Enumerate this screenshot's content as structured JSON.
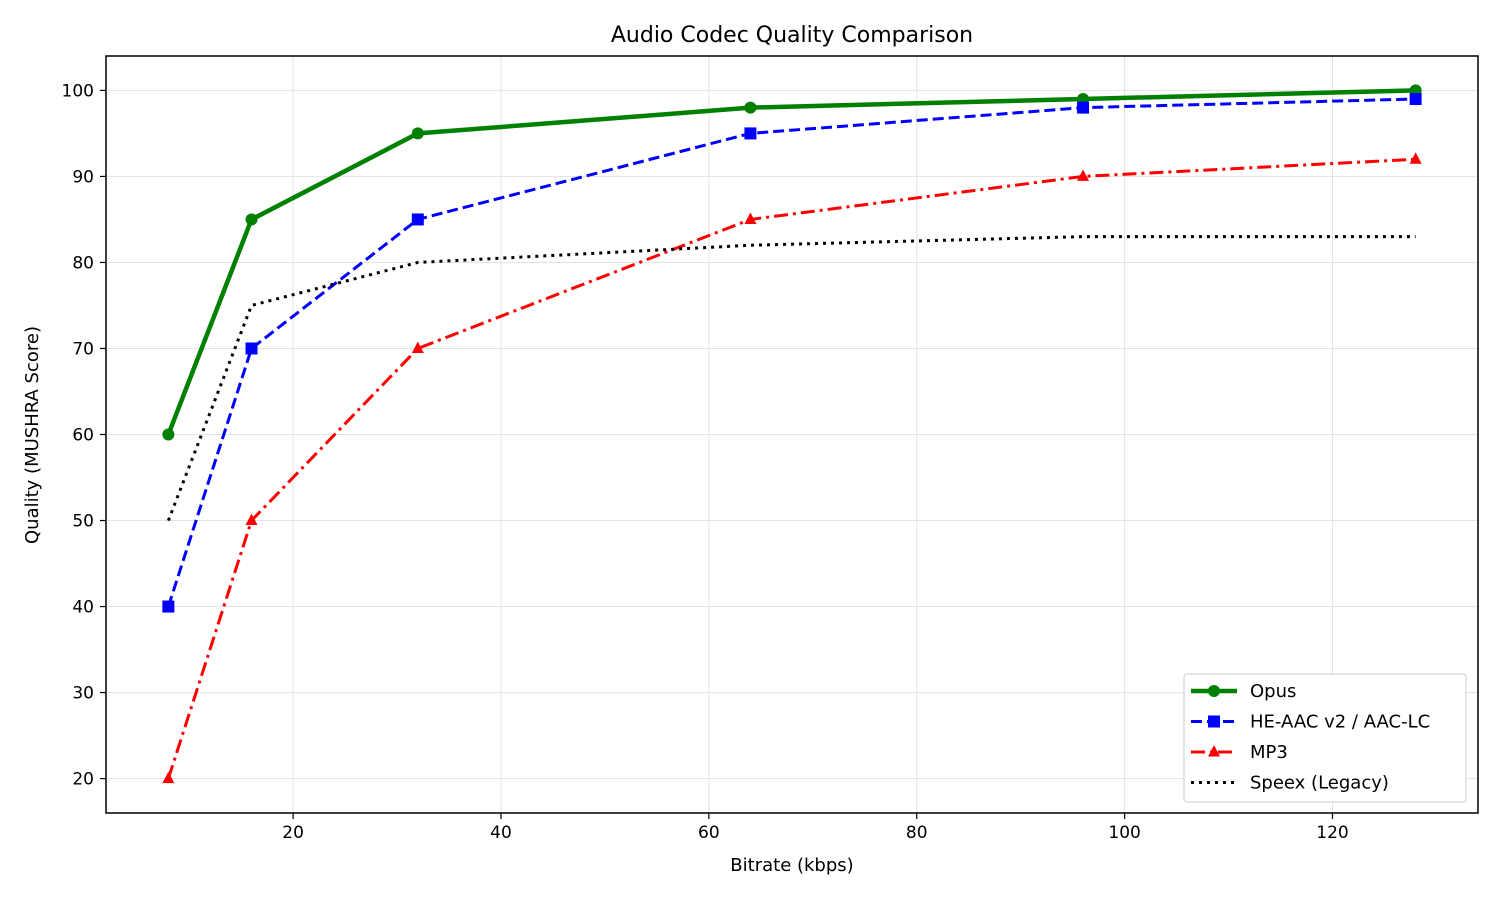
{
  "chart_data": {
    "type": "line",
    "title": "Audio Codec Quality Comparison",
    "xlabel": "Bitrate (kbps)",
    "ylabel": "Quality (MUSHRA Score)",
    "xlim": [
      2,
      134
    ],
    "ylim": [
      16,
      104
    ],
    "xticks": [
      20,
      40,
      60,
      80,
      100,
      120
    ],
    "yticks": [
      20,
      30,
      40,
      50,
      60,
      70,
      80,
      90,
      100
    ],
    "grid": true,
    "legend_position": "bottom-right",
    "series": [
      {
        "name": "Opus",
        "x": [
          8,
          16,
          32,
          64,
          96,
          128
        ],
        "y": [
          60,
          85,
          95,
          98,
          99,
          100
        ],
        "color": "#008000",
        "line_style": "solid",
        "marker": "circle"
      },
      {
        "name": "HE-AAC v2 / AAC-LC",
        "x": [
          8,
          16,
          32,
          64,
          96,
          128
        ],
        "y": [
          40,
          70,
          85,
          95,
          98,
          99
        ],
        "color": "#0000ff",
        "line_style": "dashed",
        "marker": "square"
      },
      {
        "name": "MP3",
        "x": [
          8,
          16,
          32,
          64,
          96,
          128
        ],
        "y": [
          20,
          50,
          70,
          85,
          90,
          92
        ],
        "color": "#ff0000",
        "line_style": "dash-dot",
        "marker": "triangle"
      },
      {
        "name": "Speex (Legacy)",
        "x": [
          8,
          16,
          32,
          64,
          96,
          128
        ],
        "y": [
          50,
          75,
          80,
          82,
          83,
          83
        ],
        "color": "#000000",
        "line_style": "dotted",
        "marker": "none"
      }
    ]
  }
}
